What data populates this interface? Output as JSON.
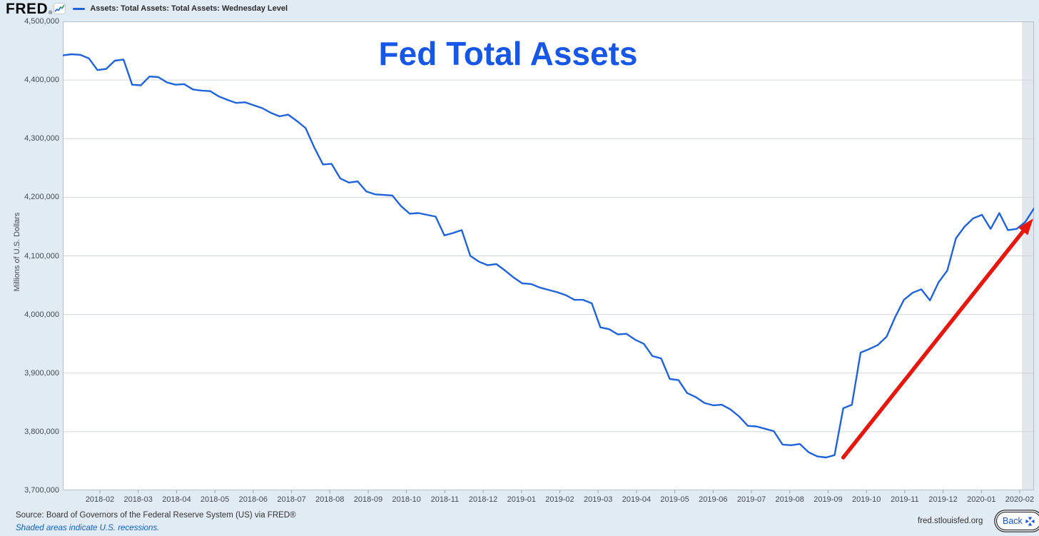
{
  "header": {
    "logo_text": "FRED",
    "logo_reg_mark": "®",
    "series_label": "Assets: Total Assets: Total Assets: Wednesday Level"
  },
  "chart_data": {
    "type": "line",
    "title": "Fed Total Assets",
    "title_color": "#1757e8",
    "ylabel": "Millions of U.S. Dollars",
    "ylim": [
      3700000,
      4500000
    ],
    "ytick_interval": 100000,
    "yticks": [
      "4,500,000",
      "4,400,000",
      "4,300,000",
      "4,200,000",
      "4,100,000",
      "4,000,000",
      "3,900,000",
      "3,800,000",
      "3,700,000"
    ],
    "xticks": [
      "2018-02",
      "2018-03",
      "2018-04",
      "2018-05",
      "2018-06",
      "2018-07",
      "2018-08",
      "2018-09",
      "2018-10",
      "2018-11",
      "2018-12",
      "2019-01",
      "2019-02",
      "2019-03",
      "2019-04",
      "2019-05",
      "2019-06",
      "2019-07",
      "2019-08",
      "2019-09",
      "2019-10",
      "2019-11",
      "2019-12",
      "2020-01",
      "2020-02"
    ],
    "grid": "horizontal",
    "legend_position": "top-left",
    "series": [
      {
        "name": "Assets: Total Assets: Total Assets: Wednesday Level",
        "color": "#1f63dc",
        "frequency": "weekly (Wednesday level)",
        "start": "2018-01",
        "end": "2020-02",
        "values": [
          4442000,
          4444000,
          4443000,
          4437000,
          4417000,
          4419000,
          4433000,
          4435000,
          4392000,
          4391000,
          4406000,
          4405000,
          4396000,
          4392000,
          4393000,
          4384000,
          4382000,
          4381000,
          4372000,
          4366000,
          4361000,
          4362000,
          4357000,
          4352000,
          4344000,
          4338000,
          4341000,
          4330000,
          4318000,
          4285000,
          4256000,
          4257000,
          4232000,
          4225000,
          4227000,
          4210000,
          4205000,
          4204000,
          4203000,
          4185000,
          4172000,
          4173000,
          4170000,
          4167000,
          4135000,
          4139000,
          4144000,
          4100000,
          4090000,
          4084000,
          4086000,
          4075000,
          4063000,
          4053000,
          4052000,
          4046000,
          4042000,
          4038000,
          4033000,
          4025000,
          4025000,
          4019000,
          3978000,
          3975000,
          3966000,
          3967000,
          3957000,
          3950000,
          3929000,
          3925000,
          3890000,
          3888000,
          3866000,
          3859000,
          3849000,
          3845000,
          3846000,
          3838000,
          3826000,
          3810000,
          3809000,
          3805000,
          3801000,
          3778000,
          3777000,
          3779000,
          3765000,
          3758000,
          3756000,
          3760000,
          3840000,
          3846000,
          3935000,
          3941000,
          3948000,
          3962000,
          3996000,
          4025000,
          4037000,
          4043000,
          4024000,
          4055000,
          4075000,
          4130000,
          4150000,
          4164000,
          4170000,
          4146000,
          4173000,
          4144000,
          4146000,
          4158000,
          4181000
        ]
      }
    ],
    "recession_shading": {
      "starts_at_tick": "2020-02",
      "color": "#e2e7ee"
    },
    "annotation_arrow": {
      "color": "#e8170e",
      "from": {
        "week_index": 90,
        "value": 3756000
      },
      "to": {
        "week_index": 111.6,
        "value": 4158000
      }
    }
  },
  "footer": {
    "source": "Source: Board of Governors of the Federal Reserve System (US) via FRED®",
    "recession_note": "Shaded areas indicate U.S. recessions.",
    "site": "fred.stlouisfed.org",
    "back_label": "Back"
  }
}
